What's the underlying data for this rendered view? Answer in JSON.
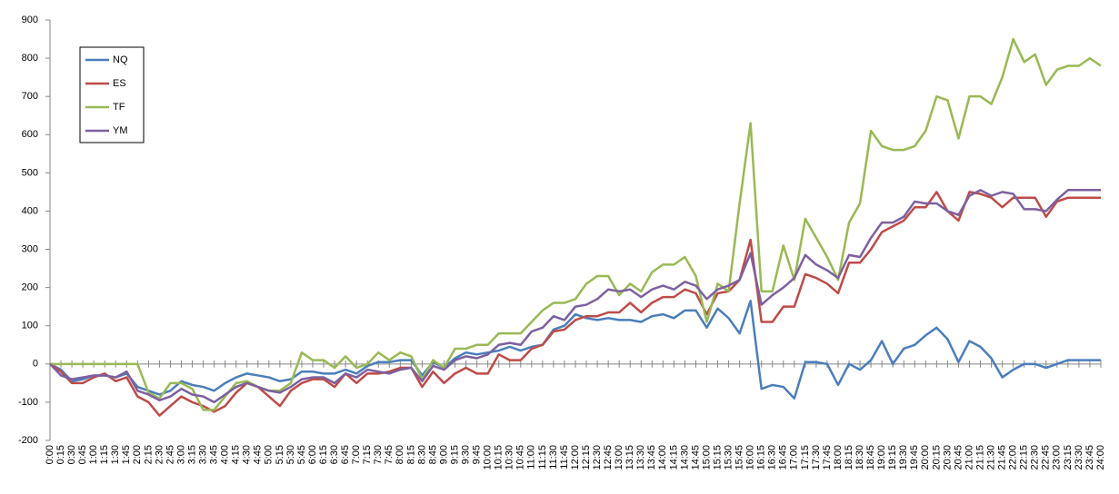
{
  "chart_data": {
    "type": "line",
    "categories": [
      "0:00",
      "0:15",
      "0:30",
      "0:45",
      "1:00",
      "1:15",
      "1:30",
      "1:45",
      "2:00",
      "2:15",
      "2:30",
      "2:45",
      "3:00",
      "3:15",
      "3:30",
      "3:45",
      "4:00",
      "4:15",
      "4:30",
      "4:45",
      "5:00",
      "5:15",
      "5:30",
      "5:45",
      "6:00",
      "6:15",
      "6:30",
      "6:45",
      "7:00",
      "7:15",
      "7:30",
      "7:45",
      "8:00",
      "8:15",
      "8:30",
      "8:45",
      "9:00",
      "9:15",
      "9:30",
      "9:45",
      "10:00",
      "10:15",
      "10:30",
      "10:45",
      "11:00",
      "11:15",
      "11:30",
      "11:45",
      "12:00",
      "12:15",
      "12:30",
      "12:45",
      "13:00",
      "13:15",
      "13:30",
      "13:45",
      "14:00",
      "14:15",
      "14:30",
      "14:45",
      "15:00",
      "15:15",
      "15:30",
      "15:45",
      "16:00",
      "16:15",
      "16:30",
      "16:45",
      "17:00",
      "17:15",
      "17:30",
      "17:45",
      "18:00",
      "18:15",
      "18:30",
      "18:45",
      "19:00",
      "19:15",
      "19:30",
      "19:45",
      "20:00",
      "20:15",
      "20:30",
      "20:45",
      "21:00",
      "21:15",
      "21:30",
      "21:45",
      "22:00",
      "22:15",
      "22:30",
      "22:45",
      "23:00",
      "23:15",
      "23:30",
      "23:45",
      "24:00"
    ],
    "series": [
      {
        "name": "NQ",
        "color": "#4a7ebb",
        "values": [
          0,
          -15,
          -45,
          -40,
          -30,
          -30,
          -35,
          -25,
          -60,
          -70,
          -80,
          -70,
          -45,
          -55,
          -60,
          -70,
          -50,
          -35,
          -25,
          -30,
          -35,
          -45,
          -40,
          -20,
          -20,
          -25,
          -25,
          -15,
          -25,
          -5,
          5,
          5,
          10,
          10,
          -30,
          5,
          -10,
          15,
          30,
          25,
          30,
          35,
          45,
          35,
          45,
          50,
          90,
          100,
          130,
          120,
          115,
          120,
          115,
          115,
          110,
          125,
          130,
          120,
          140,
          140,
          95,
          145,
          120,
          80,
          165,
          -65,
          -55,
          -60,
          -90,
          5,
          5,
          0,
          -55,
          0,
          -15,
          10,
          60,
          0,
          40,
          50,
          75,
          95,
          65,
          5,
          60,
          45,
          15,
          -35,
          -15,
          0,
          0,
          -10,
          0,
          10,
          10,
          10,
          10
        ]
      },
      {
        "name": "ES",
        "color": "#be4b48",
        "values": [
          0,
          -20,
          -50,
          -50,
          -35,
          -25,
          -45,
          -35,
          -85,
          -100,
          -135,
          -110,
          -85,
          -100,
          -110,
          -125,
          -110,
          -75,
          -50,
          -60,
          -85,
          -110,
          -70,
          -50,
          -40,
          -40,
          -60,
          -25,
          -50,
          -25,
          -25,
          -20,
          -10,
          -10,
          -60,
          -20,
          -50,
          -25,
          -10,
          -25,
          -25,
          25,
          10,
          10,
          40,
          50,
          85,
          90,
          115,
          125,
          125,
          135,
          135,
          160,
          135,
          160,
          175,
          175,
          195,
          185,
          130,
          185,
          190,
          220,
          325,
          110,
          110,
          150,
          150,
          235,
          225,
          210,
          185,
          265,
          265,
          300,
          345,
          360,
          375,
          410,
          410,
          450,
          400,
          375,
          450,
          445,
          435,
          410,
          435,
          435,
          435,
          385,
          425,
          435,
          435,
          435,
          435
        ]
      },
      {
        "name": "TF",
        "color": "#98b954",
        "values": [
          0,
          0,
          0,
          0,
          0,
          0,
          0,
          0,
          0,
          -75,
          -90,
          -50,
          -50,
          -65,
          -120,
          -120,
          -85,
          -50,
          -45,
          -60,
          -70,
          -70,
          -50,
          30,
          10,
          10,
          -10,
          20,
          -10,
          0,
          30,
          10,
          30,
          20,
          -40,
          10,
          -10,
          40,
          40,
          50,
          50,
          80,
          80,
          80,
          110,
          140,
          160,
          160,
          170,
          210,
          230,
          230,
          180,
          210,
          190,
          240,
          260,
          260,
          280,
          230,
          110,
          210,
          190,
          420,
          630,
          190,
          190,
          310,
          220,
          380,
          330,
          280,
          220,
          370,
          420,
          610,
          570,
          560,
          560,
          570,
          610,
          700,
          690,
          590,
          700,
          700,
          680,
          750,
          850,
          790,
          810,
          730,
          770,
          780,
          780,
          800,
          780
        ]
      },
      {
        "name": "YM",
        "color": "#7d60a0",
        "values": [
          0,
          -30,
          -40,
          -35,
          -30,
          -30,
          -35,
          -20,
          -70,
          -80,
          -95,
          -85,
          -65,
          -80,
          -85,
          -100,
          -80,
          -60,
          -50,
          -60,
          -70,
          -75,
          -60,
          -40,
          -35,
          -35,
          -50,
          -25,
          -35,
          -15,
          -20,
          -25,
          -15,
          -10,
          -45,
          -5,
          -15,
          10,
          20,
          15,
          25,
          50,
          55,
          50,
          85,
          95,
          125,
          115,
          150,
          155,
          170,
          195,
          190,
          195,
          175,
          195,
          205,
          195,
          215,
          205,
          170,
          195,
          205,
          220,
          290,
          155,
          180,
          200,
          225,
          285,
          260,
          245,
          225,
          285,
          280,
          330,
          370,
          370,
          385,
          425,
          420,
          420,
          400,
          390,
          440,
          455,
          440,
          450,
          445,
          405,
          405,
          400,
          430,
          455,
          455,
          455,
          455
        ]
      }
    ],
    "ylim": [
      -200,
      900
    ],
    "yticks": [
      -200,
      -100,
      0,
      100,
      200,
      300,
      400,
      500,
      600,
      700,
      800,
      900
    ],
    "legend": "upper left"
  }
}
